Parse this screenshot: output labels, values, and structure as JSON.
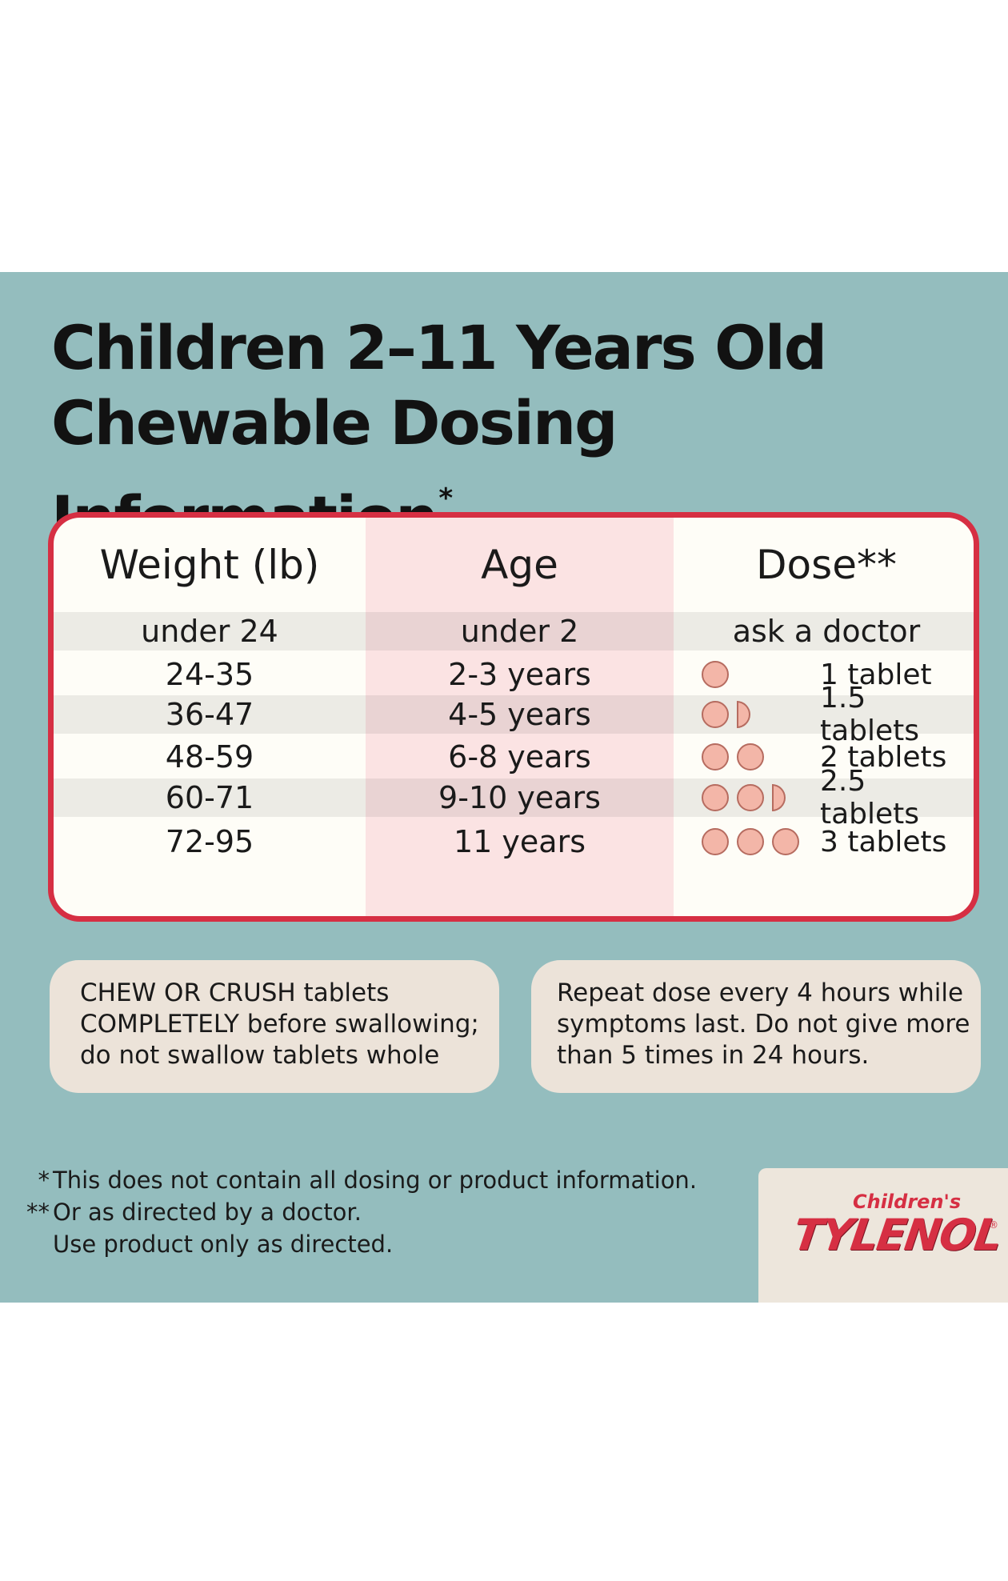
{
  "title": {
    "line1": "Children 2–11 Years Old",
    "line2": "Chewable Dosing Information",
    "mark": "*"
  },
  "table": {
    "headers": {
      "weight": "Weight (lb)",
      "age": "Age",
      "dose": "Dose**"
    },
    "first_row": {
      "weight": "under 24",
      "age": "under 2",
      "dose": "ask a doctor"
    },
    "rows": [
      {
        "weight": "24-35",
        "age": "2-3 years",
        "dose": "1 tablet",
        "tablets": 1
      },
      {
        "weight": "36-47",
        "age": "4-5 years",
        "dose": "1.5 tablets",
        "tablets": 1.5
      },
      {
        "weight": "48-59",
        "age": "6-8 years",
        "dose": "2 tablets",
        "tablets": 2
      },
      {
        "weight": "60-71",
        "age": "9-10 years",
        "dose": "2.5 tablets",
        "tablets": 2.5
      },
      {
        "weight": "72-95",
        "age": "11 years",
        "dose": "3 tablets",
        "tablets": 3
      }
    ]
  },
  "notes": {
    "left": [
      "CHEW OR CRUSH tablets",
      "COMPLETELY before swallowing;",
      "do not swallow tablets whole"
    ],
    "right": [
      "Repeat dose every 4 hours while",
      "symptoms last. Do not give more",
      "than 5 times in 24 hours."
    ]
  },
  "footnotes": [
    {
      "mark": "*",
      "text": "This does not contain all dosing or product information."
    },
    {
      "mark": "**",
      "text": "Or as directed by a doctor."
    },
    {
      "mark": "",
      "text": "Use product only as directed."
    }
  ],
  "brand": {
    "sub": "Children's",
    "name": "TYLENOL",
    "reg": "®"
  },
  "colors": {
    "panel": "#94bdbe",
    "accent": "#d62f43",
    "tablet": "#f3b6a8"
  }
}
